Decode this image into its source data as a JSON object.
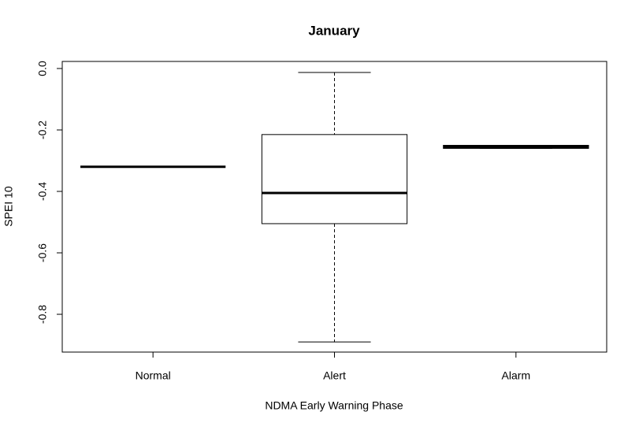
{
  "chart_data": {
    "type": "box",
    "title": "January",
    "x_label": "NDMA Early Warning Phase",
    "y_label": "SPEI 10",
    "categories": [
      "Normal",
      "Alert",
      "Alarm"
    ],
    "whisker_high": [
      -0.32,
      -0.013,
      -0.25
    ],
    "q3": [
      -0.32,
      -0.215,
      -0.25
    ],
    "median": [
      -0.32,
      -0.405,
      -0.255
    ],
    "q1": [
      -0.32,
      -0.505,
      -0.26
    ],
    "whisker_low": [
      -0.32,
      -0.89,
      -0.26
    ],
    "color": "#ffffff",
    "ylim": [
      -0.923,
      0.023
    ],
    "yticks": [
      {
        "value": 0,
        "label": "0.0"
      },
      -0.2,
      -0.4,
      -0.6,
      -0.8
    ]
  }
}
